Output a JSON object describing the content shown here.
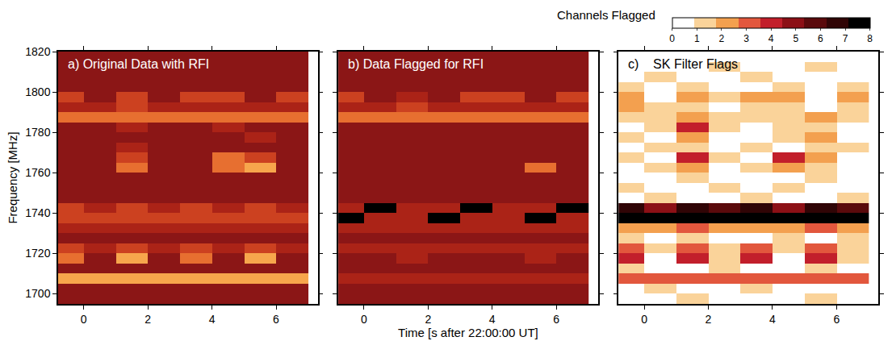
{
  "chart_data": [
    {
      "type": "heatmap",
      "title": "a) Original Data with RFI",
      "y_label": "Frequency [MHz]",
      "x": [
        -0.5,
        0.5,
        1.5,
        2.5,
        3.5,
        4.5,
        5.5,
        6.5
      ],
      "y": [
        1697.5,
        1702.5,
        1707.5,
        1712.5,
        1717.5,
        1722.5,
        1727.5,
        1732.5,
        1737.5,
        1742.5,
        1747.5,
        1752.5,
        1757.5,
        1762.5,
        1767.5,
        1772.5,
        1777.5,
        1782.5,
        1787.5,
        1792.5,
        1797.5,
        1802.5,
        1807.5,
        1812.5,
        1817.5
      ],
      "z": [
        [
          3,
          3,
          3,
          3,
          3,
          3,
          3,
          3
        ],
        [
          3,
          3,
          3,
          3,
          3,
          3,
          3,
          3
        ],
        [
          7,
          7,
          7,
          7,
          7,
          7,
          7,
          7
        ],
        [
          3,
          3,
          3,
          3,
          3,
          3,
          3,
          3
        ],
        [
          6,
          3,
          7,
          3,
          6,
          3,
          7,
          3
        ],
        [
          5,
          4,
          5,
          4,
          5,
          4,
          5,
          4
        ],
        [
          3,
          3,
          3,
          3,
          3,
          3,
          3,
          3
        ],
        [
          4,
          4,
          4,
          4,
          4,
          4,
          4,
          4
        ],
        [
          5,
          5,
          5,
          5,
          5,
          5,
          5,
          5
        ],
        [
          5,
          4,
          5,
          4,
          5,
          4,
          5,
          4
        ],
        [
          3,
          3,
          3,
          3,
          3,
          3,
          3,
          3
        ],
        [
          3,
          3,
          3,
          3,
          3,
          3,
          3,
          3
        ],
        [
          3,
          3,
          3,
          3,
          3,
          3,
          3,
          3
        ],
        [
          3,
          3,
          6,
          3,
          3,
          6,
          7,
          3
        ],
        [
          3,
          3,
          5,
          3,
          3,
          6,
          5,
          3
        ],
        [
          3,
          3,
          4,
          3,
          3,
          3,
          3,
          3
        ],
        [
          3,
          3,
          3,
          3,
          3,
          3,
          4,
          3
        ],
        [
          3,
          3,
          4,
          3,
          3,
          4,
          3,
          3
        ],
        [
          6,
          6,
          6,
          6,
          6,
          6,
          6,
          6
        ],
        [
          4,
          4,
          5,
          4,
          4,
          4,
          4,
          4
        ],
        [
          5,
          3,
          5,
          3,
          5,
          5,
          3,
          5
        ],
        [
          3,
          3,
          3,
          3,
          3,
          3,
          3,
          3
        ],
        [
          3,
          3,
          3,
          3,
          3,
          3,
          3,
          3
        ],
        [
          3,
          3,
          3,
          3,
          3,
          3,
          3,
          3
        ],
        [
          3,
          3,
          3,
          3,
          3,
          3,
          3,
          3
        ]
      ],
      "zlim": [
        0,
        8
      ],
      "xlim": [
        -0.8,
        7.3
      ],
      "xticks": [
        0,
        2,
        4,
        6
      ],
      "ylim": [
        1695,
        1820
      ],
      "yticks": [
        1700,
        1720,
        1740,
        1760,
        1780,
        1800,
        1820
      ]
    },
    {
      "type": "heatmap",
      "title": "b) Data Flagged for RFI",
      "x_label": "Time [s after 22:00:00 UT]",
      "x": [
        -0.5,
        0.5,
        1.5,
        2.5,
        3.5,
        4.5,
        5.5,
        6.5
      ],
      "y": [
        1697.5,
        1702.5,
        1707.5,
        1712.5,
        1717.5,
        1722.5,
        1727.5,
        1732.5,
        1737.5,
        1742.5,
        1747.5,
        1752.5,
        1757.5,
        1762.5,
        1767.5,
        1772.5,
        1777.5,
        1782.5,
        1787.5,
        1792.5,
        1797.5,
        1802.5,
        1807.5,
        1812.5,
        1817.5
      ],
      "z": [
        [
          3,
          3,
          3,
          3,
          3,
          3,
          3,
          3
        ],
        [
          3,
          3,
          3,
          3,
          3,
          3,
          3,
          3
        ],
        [
          4,
          4,
          4,
          4,
          4,
          4,
          4,
          4
        ],
        [
          3,
          3,
          3,
          3,
          3,
          3,
          3,
          3
        ],
        [
          3,
          3,
          4,
          3,
          3,
          3,
          4,
          3
        ],
        [
          4,
          4,
          4,
          4,
          4,
          4,
          4,
          4
        ],
        [
          3,
          3,
          3,
          3,
          3,
          3,
          3,
          3
        ],
        [
          4,
          4,
          4,
          4,
          4,
          4,
          4,
          4
        ],
        [
          0,
          4,
          4,
          0,
          4,
          4,
          0,
          4
        ],
        [
          4,
          0,
          4,
          4,
          0,
          4,
          4,
          0
        ],
        [
          3,
          3,
          3,
          3,
          3,
          3,
          3,
          3
        ],
        [
          3,
          3,
          3,
          3,
          3,
          3,
          3,
          3
        ],
        [
          3,
          3,
          3,
          3,
          3,
          3,
          3,
          3
        ],
        [
          3,
          3,
          3,
          3,
          3,
          3,
          6,
          3
        ],
        [
          3,
          3,
          3,
          3,
          3,
          3,
          3,
          3
        ],
        [
          3,
          3,
          3,
          3,
          3,
          3,
          3,
          3
        ],
        [
          3,
          3,
          3,
          3,
          3,
          3,
          3,
          3
        ],
        [
          3,
          3,
          3,
          3,
          3,
          3,
          3,
          3
        ],
        [
          6,
          6,
          6,
          6,
          6,
          6,
          6,
          6
        ],
        [
          4,
          4,
          5,
          4,
          4,
          4,
          4,
          4
        ],
        [
          5,
          3,
          4,
          3,
          5,
          5,
          3,
          5
        ],
        [
          3,
          3,
          3,
          3,
          3,
          3,
          3,
          3
        ],
        [
          3,
          3,
          3,
          3,
          3,
          3,
          3,
          3
        ],
        [
          3,
          3,
          3,
          3,
          3,
          3,
          3,
          3
        ],
        [
          3,
          3,
          3,
          3,
          3,
          3,
          3,
          3
        ]
      ],
      "zlim": [
        0,
        8
      ],
      "xlim": [
        -0.8,
        7.3
      ],
      "xticks": [
        0,
        2,
        4,
        6
      ],
      "ylim": [
        1695,
        1820
      ],
      "yticks": [
        1700,
        1720,
        1740,
        1760,
        1780,
        1800,
        1820
      ]
    },
    {
      "type": "heatmap",
      "title": "c)    SK Filter Flags",
      "x": [
        -0.5,
        0.5,
        1.5,
        2.5,
        3.5,
        4.5,
        5.5,
        6.5
      ],
      "y": [
        1697.5,
        1702.5,
        1707.5,
        1712.5,
        1717.5,
        1722.5,
        1727.5,
        1732.5,
        1737.5,
        1742.5,
        1747.5,
        1752.5,
        1757.5,
        1762.5,
        1767.5,
        1772.5,
        1777.5,
        1782.5,
        1787.5,
        1792.5,
        1797.5,
        1802.5,
        1807.5,
        1812.5,
        1817.5
      ],
      "z": [
        [
          0,
          0,
          1,
          0,
          0,
          0,
          1,
          0
        ],
        [
          0,
          1,
          0,
          0,
          1,
          0,
          0,
          0
        ],
        [
          3,
          3,
          3,
          3,
          3,
          3,
          3,
          3
        ],
        [
          1,
          0,
          0,
          1,
          0,
          0,
          1,
          0
        ],
        [
          4,
          0,
          4,
          1,
          4,
          0,
          4,
          1
        ],
        [
          3,
          1,
          3,
          1,
          3,
          1,
          3,
          1
        ],
        [
          1,
          0,
          1,
          0,
          0,
          1,
          0,
          1
        ],
        [
          2,
          2,
          3,
          2,
          2,
          2,
          3,
          2
        ],
        [
          8,
          8,
          8,
          8,
          8,
          8,
          8,
          8
        ],
        [
          7,
          5,
          7,
          6,
          7,
          5,
          7,
          6
        ],
        [
          0,
          1,
          0,
          0,
          1,
          0,
          0,
          1
        ],
        [
          1,
          0,
          0,
          1,
          0,
          1,
          0,
          0
        ],
        [
          0,
          0,
          1,
          0,
          0,
          0,
          1,
          0
        ],
        [
          0,
          1,
          2,
          0,
          1,
          2,
          1,
          0
        ],
        [
          1,
          0,
          4,
          1,
          0,
          4,
          2,
          0
        ],
        [
          0,
          1,
          1,
          0,
          1,
          0,
          1,
          1
        ],
        [
          1,
          0,
          2,
          0,
          0,
          1,
          2,
          0
        ],
        [
          0,
          1,
          4,
          1,
          0,
          1,
          1,
          0
        ],
        [
          1,
          1,
          2,
          1,
          1,
          1,
          2,
          1
        ],
        [
          2,
          1,
          1,
          0,
          1,
          1,
          0,
          1
        ],
        [
          2,
          0,
          2,
          1,
          2,
          2,
          0,
          2
        ],
        [
          1,
          0,
          1,
          0,
          0,
          1,
          0,
          1
        ],
        [
          0,
          1,
          0,
          0,
          1,
          0,
          0,
          0
        ],
        [
          0,
          0,
          0,
          1,
          0,
          0,
          1,
          0
        ],
        [
          0,
          0,
          0,
          0,
          0,
          0,
          0,
          0
        ]
      ],
      "colorbar": {
        "title": "Channels Flagged",
        "range": [
          0,
          8
        ],
        "ticks": [
          0,
          1,
          2,
          3,
          4,
          5,
          6,
          7,
          8
        ]
      },
      "xlim": [
        -0.8,
        7.3
      ],
      "xticks": [
        0,
        2,
        4,
        6
      ],
      "ylim": [
        1695,
        1820
      ],
      "yticks": [
        1700,
        1720,
        1740,
        1760,
        1780,
        1800,
        1820
      ]
    }
  ]
}
